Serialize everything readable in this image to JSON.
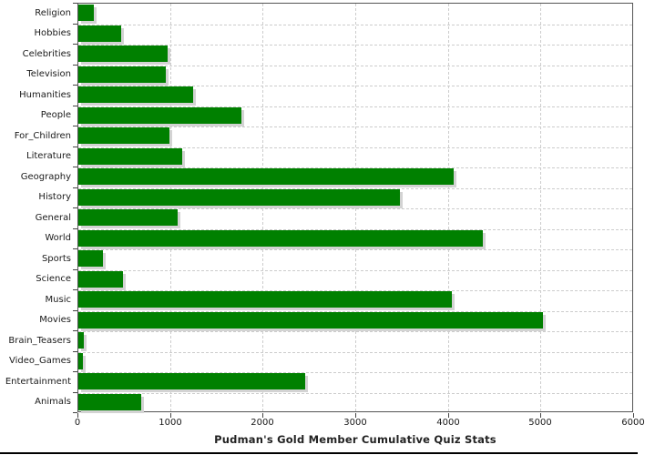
{
  "colors": {
    "bar": "#008000",
    "bar_shadow": "#d3d3d3",
    "grid": "#cccccc",
    "plot_border": "#545454",
    "axis": "#444444",
    "label": "#1a1a1a"
  },
  "chart_data": {
    "type": "bar",
    "orientation": "horizontal",
    "title": "Pudman's Gold Member Cumulative Quiz Stats",
    "categories": [
      "Religion",
      "Hobbies",
      "Celebrities",
      "Television",
      "Humanities",
      "People",
      "For_Children",
      "Literature",
      "Geography",
      "History",
      "General",
      "World",
      "Sports",
      "Science",
      "Music",
      "Movies",
      "Brain_Teasers",
      "Video_Games",
      "Entertainment",
      "Animals"
    ],
    "values": [
      170,
      465,
      965,
      945,
      1235,
      1760,
      985,
      1120,
      4050,
      3470,
      1075,
      4370,
      270,
      480,
      4030,
      5020,
      60,
      50,
      2450,
      675
    ],
    "xlabel": "",
    "ylabel": "",
    "xlim": [
      0,
      6000
    ],
    "x_ticks": [
      0,
      1000,
      2000,
      3000,
      4000,
      5000,
      6000
    ],
    "grid": true,
    "legend": false
  }
}
